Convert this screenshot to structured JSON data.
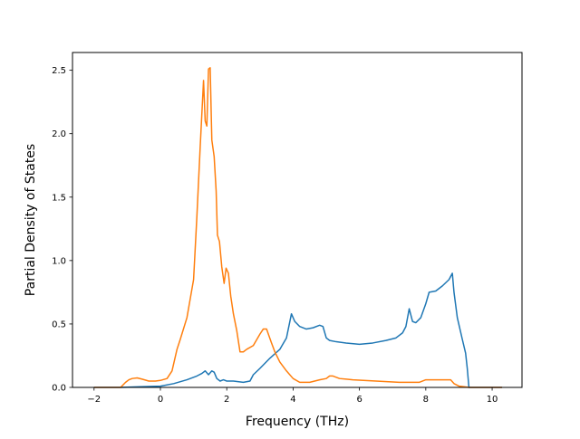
{
  "chart_data": {
    "type": "line",
    "title": "",
    "xlabel": "Frequency (THz)",
    "ylabel": "Partial Density of States",
    "xlim": [
      -2.65,
      10.9
    ],
    "ylim": [
      0,
      2.64
    ],
    "xticks": [
      -2,
      0,
      2,
      4,
      6,
      8,
      10
    ],
    "yticks": [
      0.0,
      0.5,
      1.0,
      1.5,
      2.0,
      2.5
    ],
    "xtick_labels": [
      "−2",
      "0",
      "2",
      "4",
      "6",
      "8",
      "10"
    ],
    "ytick_labels": [
      "0.0",
      "0.5",
      "1.0",
      "1.5",
      "2.0",
      "2.5"
    ],
    "grid": false,
    "legend": "none",
    "series": [
      {
        "color": "#1f77b4",
        "x": [
          -2.0,
          -1.2,
          -0.6,
          0.0,
          0.4,
          0.8,
          1.1,
          1.25,
          1.35,
          1.45,
          1.55,
          1.62,
          1.7,
          1.8,
          1.9,
          2.0,
          2.2,
          2.5,
          2.7,
          2.8,
          3.0,
          3.3,
          3.6,
          3.8,
          3.95,
          4.05,
          4.2,
          4.4,
          4.6,
          4.8,
          4.9,
          5.0,
          5.1,
          5.3,
          5.6,
          6.0,
          6.4,
          6.8,
          7.1,
          7.3,
          7.4,
          7.5,
          7.6,
          7.7,
          7.85,
          8.0,
          8.1,
          8.3,
          8.5,
          8.7,
          8.8,
          8.85,
          8.95,
          9.1,
          9.2,
          9.25,
          9.3,
          9.5,
          10.0,
          10.3
        ],
        "y": [
          0.0,
          0.0,
          0.005,
          0.01,
          0.03,
          0.06,
          0.09,
          0.11,
          0.13,
          0.1,
          0.13,
          0.12,
          0.07,
          0.05,
          0.06,
          0.05,
          0.05,
          0.04,
          0.05,
          0.1,
          0.15,
          0.23,
          0.3,
          0.39,
          0.58,
          0.52,
          0.48,
          0.46,
          0.47,
          0.49,
          0.48,
          0.39,
          0.37,
          0.36,
          0.35,
          0.34,
          0.35,
          0.37,
          0.39,
          0.43,
          0.48,
          0.62,
          0.52,
          0.51,
          0.55,
          0.66,
          0.75,
          0.76,
          0.8,
          0.85,
          0.9,
          0.75,
          0.55,
          0.38,
          0.27,
          0.15,
          0.0,
          0.0,
          0.0,
          0.0
        ]
      },
      {
        "color": "#ff7f0e",
        "x": [
          -2.0,
          -1.2,
          -1.05,
          -0.95,
          -0.85,
          -0.7,
          -0.55,
          -0.35,
          -0.15,
          0.0,
          0.2,
          0.35,
          0.5,
          0.6,
          0.8,
          1.0,
          1.1,
          1.2,
          1.3,
          1.35,
          1.4,
          1.45,
          1.5,
          1.55,
          1.62,
          1.68,
          1.72,
          1.78,
          1.85,
          1.92,
          1.98,
          2.05,
          2.12,
          2.2,
          2.3,
          2.4,
          2.5,
          2.6,
          2.8,
          3.0,
          3.1,
          3.2,
          3.35,
          3.45,
          3.6,
          3.8,
          4.0,
          4.2,
          4.5,
          4.8,
          5.0,
          5.1,
          5.2,
          5.4,
          5.8,
          6.5,
          7.2,
          7.8,
          8.0,
          8.2,
          8.5,
          8.75,
          8.85,
          9.0,
          9.3,
          10.0,
          10.3
        ],
        "y": [
          0.0,
          0.0,
          0.04,
          0.06,
          0.07,
          0.075,
          0.065,
          0.05,
          0.05,
          0.055,
          0.07,
          0.13,
          0.3,
          0.38,
          0.55,
          0.85,
          1.35,
          1.9,
          2.42,
          2.1,
          2.06,
          2.51,
          2.52,
          1.95,
          1.82,
          1.55,
          1.2,
          1.15,
          0.95,
          0.82,
          0.94,
          0.9,
          0.72,
          0.58,
          0.45,
          0.28,
          0.28,
          0.3,
          0.33,
          0.42,
          0.46,
          0.46,
          0.35,
          0.28,
          0.2,
          0.13,
          0.07,
          0.04,
          0.04,
          0.06,
          0.07,
          0.09,
          0.09,
          0.07,
          0.06,
          0.05,
          0.04,
          0.04,
          0.06,
          0.06,
          0.06,
          0.06,
          0.03,
          0.01,
          0.0,
          0.0,
          0.0
        ]
      }
    ]
  }
}
